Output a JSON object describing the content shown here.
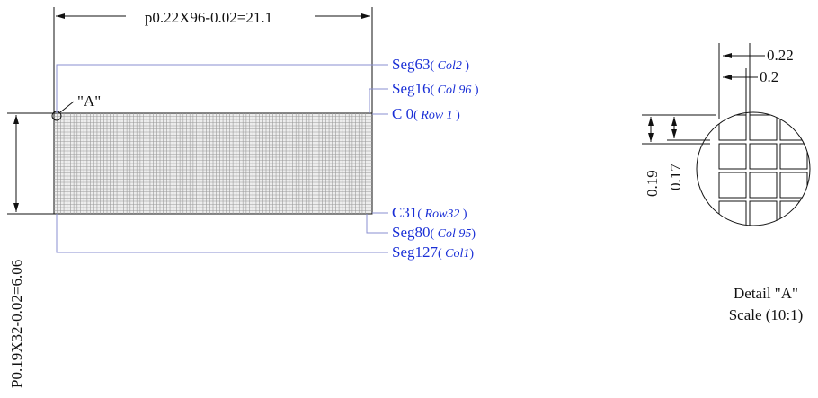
{
  "dimensions": {
    "width_label": "p0.22X96-0.02=21.1",
    "height_label": "P0.19X32-0.02=6.06"
  },
  "callout": {
    "label": "\"A\""
  },
  "segments": [
    {
      "pin": "Seg63",
      "sub": "Col2"
    },
    {
      "pin": "Seg16",
      "sub": "Col 96"
    },
    {
      "pin": "C 0",
      "sub": "Row 1"
    },
    {
      "pin": "C31",
      "sub": "Row32"
    },
    {
      "pin": "Seg80",
      "sub": "Col 95"
    },
    {
      "pin": "Seg127",
      "sub": "Col1"
    }
  ],
  "detail": {
    "pitch_x": "0.22",
    "pixel_x": "0.2",
    "pitch_y": "0.19",
    "pixel_y": "0.17",
    "title": "Detail \"A\"",
    "scale": "Scale (10:1)"
  },
  "colors": {
    "line": "#111111",
    "label_blue": "#1a2fd6",
    "leader": "#8a8fd0",
    "grid": "#9a9a9a"
  },
  "matrix": {
    "columns": 96,
    "rows": 32
  }
}
